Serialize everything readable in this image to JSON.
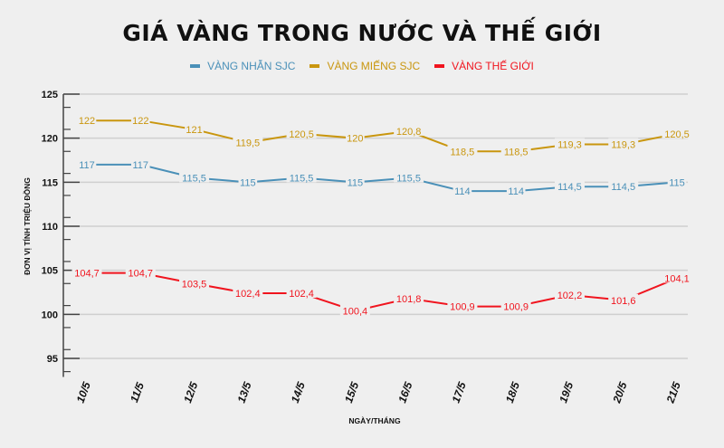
{
  "chart_data": {
    "type": "line",
    "title": "GIÁ VÀNG TRONG NƯỚC VÀ THẾ GIỚI",
    "xlabel": "NGÀY/THÁNG",
    "ylabel": "ĐƠN VỊ TÍNH TRIỆU ĐỒNG",
    "categories": [
      "10/5",
      "11/5",
      "12/5",
      "13/5",
      "14/5",
      "15/5",
      "16/5",
      "17/5",
      "18/5",
      "19/5",
      "20/5",
      "21/5"
    ],
    "ylim": [
      93,
      125
    ],
    "yticks": [
      95,
      100,
      105,
      110,
      115,
      120,
      125
    ],
    "grid": true,
    "legend_position": "top",
    "series": [
      {
        "name": "VÀNG NHẪN SJC",
        "color": "#4a90b8",
        "values": [
          117,
          117,
          115.5,
          115,
          115.5,
          115,
          115.5,
          114,
          114,
          114.5,
          114.5,
          115
        ],
        "labels": [
          "117",
          "117",
          "115,5",
          "115",
          "115,5",
          "115",
          "115,5",
          "114",
          "114",
          "114,5",
          "114,5",
          "115"
        ]
      },
      {
        "name": "VÀNG MIẾNG SJC",
        "color": "#c9960e",
        "values": [
          122,
          122,
          121,
          119.5,
          120.5,
          120,
          120.8,
          118.5,
          118.5,
          119.3,
          119.3,
          120.5
        ],
        "labels": [
          "122",
          "122",
          "121",
          "119,5",
          "120,5",
          "120",
          "120,8",
          "118,5",
          "118,5",
          "119,3",
          "119,3",
          "120,5"
        ]
      },
      {
        "name": "VÀNG THẾ GIỚI",
        "color": "#f0141e",
        "values": [
          104.7,
          104.7,
          103.5,
          102.4,
          102.4,
          100.4,
          101.8,
          100.9,
          100.9,
          102.2,
          101.6,
          104.1
        ],
        "labels": [
          "104,7",
          "104,7",
          "103,5",
          "102,4",
          "102,4",
          "100,4",
          "101,8",
          "100,9",
          "100,9",
          "102,2",
          "101,6",
          "104,1"
        ]
      }
    ]
  }
}
